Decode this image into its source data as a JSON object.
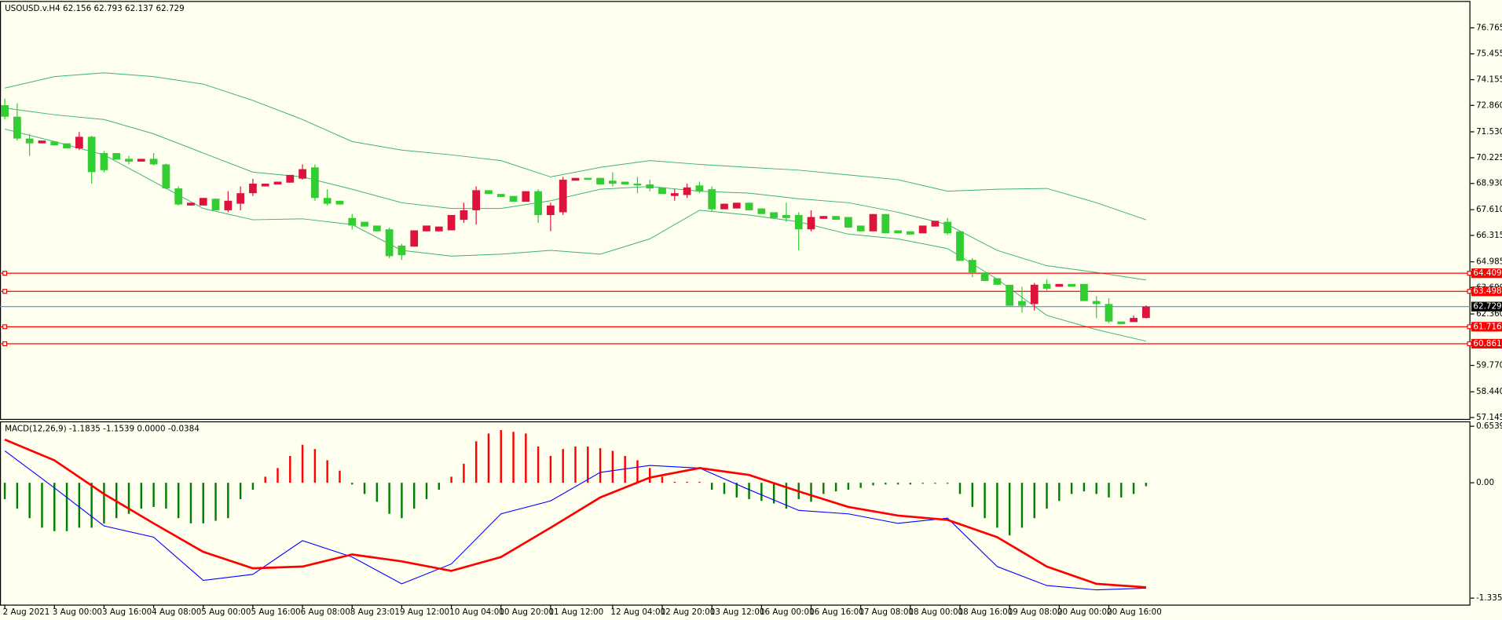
{
  "chart_data": [
    {
      "type": "candlestick",
      "title": "USOUSD.v.H4",
      "up_color": "#dc143c",
      "down_color": "#32cd32",
      "categories": [
        "2 Aug 2021",
        null,
        null,
        null,
        "3 Aug 00:00",
        null,
        null,
        null,
        "3 Aug 16:00",
        null,
        null,
        null,
        "4 Aug 08:00",
        null,
        null,
        null,
        "5 Aug 00:00",
        null,
        null,
        null,
        "5 Aug 16:00",
        null,
        null,
        null,
        "6 Aug 08:00",
        null,
        null,
        null,
        "8 Aug 23:01",
        null,
        null,
        null,
        "9 Aug 12:00",
        null,
        null,
        null,
        "10 Aug 04:00",
        null,
        null,
        null,
        "10 Aug 20:00",
        null,
        null,
        null,
        "11 Aug 12:00",
        null,
        null,
        null,
        null,
        "12 Aug 04:00",
        null,
        null,
        null,
        "12 Aug 20:00",
        null,
        null,
        null,
        "13 Aug 12:00",
        null,
        null,
        null,
        "16 Aug 00:00",
        null,
        null,
        null,
        "16 Aug 16:00",
        null,
        null,
        null,
        "17 Aug 08:00",
        null,
        null,
        null,
        "18 Aug 00:00",
        null,
        null,
        null,
        "18 Aug 16:00",
        null,
        null,
        null,
        "19 Aug 08:00",
        null,
        null,
        null,
        "20 Aug 00:00",
        null,
        null,
        null,
        "20 Aug 16:00",
        null,
        null,
        null
      ],
      "open": [
        72.87,
        72.29,
        71.19,
        70.95,
        71.04,
        70.95,
        70.7,
        71.28,
        70.46,
        70.46,
        70.17,
        70.03,
        70.17,
        69.89,
        68.68,
        67.82,
        67.82,
        68.16,
        67.58,
        67.91,
        68.44,
        68.78,
        68.88,
        68.97,
        69.17,
        69.74,
        68.2,
        68.06,
        67.19,
        67.0,
        66.81,
        66.62,
        65.8,
        65.75,
        66.52,
        66.52,
        66.57,
        67.1,
        67.58,
        68.59,
        68.4,
        68.3,
        68.01,
        68.54,
        67.34,
        67.48,
        69.07,
        69.21,
        69.21,
        69.07,
        69.02,
        68.92,
        68.88,
        68.73,
        68.3,
        68.35,
        68.83,
        68.64,
        67.63,
        67.67,
        67.96,
        67.67,
        67.48,
        67.34,
        67.34,
        66.62,
        67.15,
        67.29,
        67.24,
        66.81,
        66.52,
        67.39,
        66.57,
        66.52,
        66.42,
        66.76,
        67.0,
        66.52,
        65.08,
        64.45,
        64.16,
        63.83,
        63.01,
        62.86,
        63.87,
        63.73,
        63.87,
        63.87,
        63.01,
        62.86,
        61.98,
        61.95,
        62.156
      ],
      "high": [
        73.2,
        72.97,
        71.43,
        71.09,
        71.04,
        70.95,
        71.52,
        71.33,
        70.56,
        70.46,
        70.32,
        70.17,
        70.46,
        69.93,
        68.78,
        67.96,
        68.2,
        68.16,
        68.54,
        68.78,
        69.17,
        68.92,
        69.02,
        69.36,
        69.89,
        69.89,
        68.64,
        68.06,
        67.39,
        67.0,
        66.81,
        66.71,
        65.89,
        66.57,
        66.81,
        66.76,
        67.34,
        67.96,
        68.78,
        68.59,
        68.4,
        68.3,
        68.54,
        68.64,
        67.96,
        69.26,
        69.21,
        69.21,
        69.21,
        69.5,
        69.02,
        69.26,
        69.12,
        68.73,
        68.64,
        68.92,
        69.02,
        68.78,
        67.91,
        67.96,
        67.96,
        67.67,
        67.48,
        67.96,
        67.48,
        67.58,
        67.29,
        67.29,
        67.24,
        66.81,
        67.39,
        67.39,
        66.57,
        66.52,
        66.81,
        67.05,
        67.19,
        66.52,
        65.17,
        64.45,
        64.16,
        63.83,
        63.73,
        63.92,
        64.11,
        63.87,
        63.87,
        63.87,
        63.25,
        63.15,
        61.98,
        62.28,
        62.793
      ],
      "low": [
        72.15,
        71.09,
        70.32,
        70.95,
        70.85,
        70.7,
        70.61,
        68.92,
        69.5,
        70.13,
        69.89,
        70.03,
        69.84,
        68.64,
        67.82,
        67.82,
        67.82,
        67.58,
        67.48,
        67.58,
        68.3,
        68.78,
        68.88,
        68.97,
        69.12,
        68.06,
        67.82,
        67.87,
        66.62,
        66.76,
        66.52,
        65.17,
        65.08,
        65.75,
        66.52,
        66.52,
        66.57,
        66.95,
        66.86,
        68.4,
        68.25,
        68.01,
        68.01,
        66.95,
        66.52,
        67.34,
        69.07,
        69.12,
        68.88,
        68.78,
        68.88,
        68.44,
        68.54,
        68.4,
        68.06,
        68.2,
        68.44,
        67.53,
        67.63,
        67.67,
        67.58,
        67.39,
        67.19,
        67.0,
        65.56,
        66.52,
        67.15,
        67.1,
        66.71,
        66.52,
        66.52,
        66.42,
        66.42,
        66.36,
        66.42,
        66.76,
        66.33,
        65.03,
        64.21,
        64.02,
        63.83,
        62.77,
        62.43,
        62.53,
        63.54,
        63.73,
        63.73,
        63.01,
        62.14,
        61.9,
        61.85,
        61.95,
        62.137
      ],
      "close": [
        72.29,
        71.19,
        70.95,
        71.09,
        70.85,
        70.7,
        71.28,
        69.5,
        69.6,
        70.13,
        70.03,
        70.17,
        69.89,
        68.68,
        67.87,
        67.96,
        68.2,
        67.58,
        68.06,
        68.44,
        68.92,
        68.92,
        69.02,
        69.36,
        69.65,
        68.2,
        67.91,
        67.87,
        66.81,
        66.76,
        66.52,
        65.27,
        65.32,
        66.57,
        66.81,
        66.76,
        67.34,
        67.58,
        68.59,
        68.4,
        68.25,
        68.01,
        68.54,
        67.34,
        67.82,
        69.12,
        69.21,
        69.12,
        68.88,
        68.92,
        68.88,
        68.83,
        68.68,
        68.4,
        68.44,
        68.73,
        68.54,
        67.63,
        67.91,
        67.96,
        67.58,
        67.39,
        67.19,
        67.19,
        66.62,
        67.24,
        67.29,
        67.1,
        66.71,
        66.52,
        67.39,
        66.42,
        66.42,
        66.36,
        66.81,
        67.05,
        66.42,
        65.03,
        64.45,
        64.02,
        63.83,
        62.77,
        62.77,
        63.83,
        63.63,
        63.87,
        63.73,
        63.01,
        62.86,
        61.98,
        61.85,
        62.16,
        62.729
      ],
      "series": [
        {
          "color": "#3cb371",
          "x": [
            0,
            4,
            8,
            12,
            16,
            20,
            24,
            28,
            32,
            36,
            40,
            44,
            48,
            52,
            56,
            60,
            64,
            68,
            72,
            76,
            80,
            84,
            88,
            92
          ],
          "values": [
            73.73,
            74.31,
            74.5,
            74.31,
            73.93,
            73.11,
            72.15,
            71.04,
            70.61,
            70.37,
            70.08,
            69.26,
            69.74,
            70.08,
            69.89,
            69.74,
            69.6,
            69.36,
            69.12,
            68.54,
            68.64,
            68.68,
            67.96,
            67.1
          ]
        },
        {
          "color": "#3cb371",
          "x": [
            0,
            4,
            8,
            12,
            16,
            20,
            24,
            28,
            32,
            36,
            40,
            44,
            48,
            52,
            56,
            60,
            64,
            68,
            72,
            76,
            80,
            84,
            88,
            92
          ],
          "values": [
            72.73,
            72.39,
            72.15,
            71.43,
            70.46,
            69.5,
            69.26,
            68.64,
            67.96,
            67.67,
            67.67,
            68.06,
            68.64,
            68.78,
            68.54,
            68.44,
            68.16,
            67.96,
            67.48,
            66.86,
            65.56,
            64.79,
            64.45,
            64.07
          ]
        },
        {
          "color": "#3cb371",
          "x": [
            0,
            4,
            8,
            12,
            16,
            20,
            24,
            28,
            32,
            36,
            40,
            44,
            48,
            52,
            56,
            60,
            64,
            68,
            72,
            76,
            80,
            84,
            88,
            92
          ],
          "values": [
            71.67,
            71.04,
            70.37,
            69.02,
            67.67,
            67.1,
            67.15,
            66.86,
            65.56,
            65.27,
            65.37,
            65.56,
            65.37,
            66.14,
            67.58,
            67.34,
            67.0,
            66.38,
            66.14,
            65.65,
            64.11,
            62.29,
            61.57,
            60.99
          ]
        }
      ],
      "hlines": [
        {
          "value": 64.409,
          "color": "#ff0000"
        },
        {
          "value": 63.498,
          "color": "#ff0000"
        },
        {
          "value": 61.716,
          "color": "#ff0000"
        },
        {
          "value": 60.861,
          "color": "#ff0000"
        }
      ],
      "price_line_color": "#778899",
      "ylim": [
        57.05,
        78.07
      ],
      "yticks": [
        76.765,
        75.455,
        74.155,
        {
          "value": 72.86,
          "label": "72.860"
        },
        {
          "value": 71.53,
          "label": "71.530"
        },
        70.225,
        {
          "value": 68.93,
          "label": "68.930"
        },
        {
          "value": 67.61,
          "label": "67.610"
        },
        66.315,
        64.985,
        {
          "value": 63.69,
          "label": "63.690"
        },
        {
          "value": 62.36,
          "label": "62.360"
        },
        {
          "value": 59.77,
          "label": "59.770"
        },
        {
          "value": 58.44,
          "label": "58.440"
        },
        57.145
      ]
    },
    {
      "type": "macd",
      "title": "MACD(12,26,9) -1.1835 -1.1539 0.0000 -0.0384",
      "up_color": "#ff0000",
      "down_color": "#008000",
      "values": [
        -0.19,
        -0.3,
        -0.41,
        -0.52,
        -0.56,
        -0.56,
        -0.52,
        -0.52,
        -0.47,
        -0.41,
        -0.36,
        -0.3,
        -0.28,
        -0.3,
        -0.41,
        -0.47,
        -0.47,
        -0.44,
        -0.41,
        -0.19,
        -0.08,
        0.07,
        0.17,
        0.31,
        0.44,
        0.39,
        0.26,
        0.14,
        -0.02,
        -0.13,
        -0.22,
        -0.36,
        -0.41,
        -0.3,
        -0.19,
        -0.08,
        0.07,
        0.22,
        0.48,
        0.57,
        0.61,
        0.59,
        0.57,
        0.42,
        0.31,
        0.39,
        0.42,
        0.42,
        0.4,
        0.37,
        0.31,
        0.26,
        0.17,
        0.07,
        0.01,
        0.01,
        0.01,
        -0.08,
        -0.13,
        -0.17,
        -0.19,
        -0.21,
        -0.24,
        -0.3,
        -0.19,
        -0.22,
        -0.13,
        -0.1,
        -0.08,
        -0.06,
        -0.03,
        -0.02,
        -0.02,
        -0.02,
        -0.01,
        -0.01,
        -0.01,
        -0.13,
        -0.28,
        -0.41,
        -0.52,
        -0.61,
        -0.52,
        -0.41,
        -0.3,
        -0.21,
        -0.13,
        -0.1,
        -0.13,
        -0.17,
        -0.17,
        -0.13,
        -0.04
      ],
      "series": [
        {
          "color": "#0000ff",
          "x": [
            0,
            4,
            8,
            12,
            16,
            20,
            24,
            28,
            32,
            36,
            40,
            44,
            48,
            52,
            56,
            60,
            64,
            68,
            72,
            76,
            80,
            84,
            88,
            92
          ],
          "values": [
            0.37,
            -0.06,
            -0.5,
            -0.63,
            -1.13,
            -1.06,
            -0.67,
            -0.86,
            -1.17,
            -0.94,
            -0.36,
            -0.21,
            0.12,
            0.2,
            0.17,
            -0.08,
            -0.32,
            -0.36,
            -0.47,
            -0.41,
            -0.97,
            -1.19,
            -1.24,
            -1.22
          ]
        },
        {
          "color": "#ff0000",
          "x": [
            0,
            4,
            8,
            12,
            16,
            20,
            24,
            28,
            32,
            36,
            40,
            44,
            48,
            52,
            56,
            60,
            64,
            68,
            72,
            76,
            80,
            84,
            88,
            92
          ],
          "values": [
            0.5,
            0.26,
            -0.13,
            -0.47,
            -0.8,
            -0.99,
            -0.97,
            -0.83,
            -0.91,
            -1.02,
            -0.86,
            -0.52,
            -0.17,
            0.06,
            0.17,
            0.09,
            -0.1,
            -0.28,
            -0.38,
            -0.43,
            -0.63,
            -0.97,
            -1.17,
            -1.21
          ]
        }
      ],
      "ylim": [
        -1.411,
        0.7
      ],
      "yticks": [
        0.6539,
        {
          "value": 0,
          "label": "0.00"
        },
        -1.3355
      ]
    }
  ]
}
